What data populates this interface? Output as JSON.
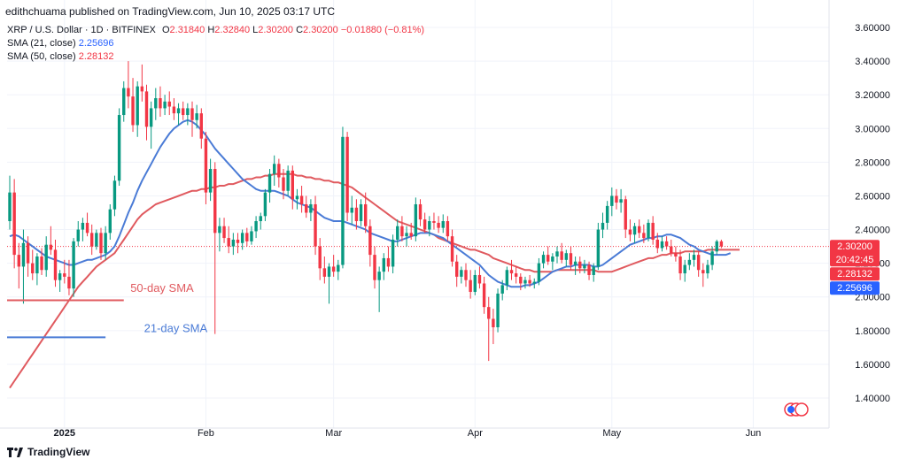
{
  "header": {
    "publisher": "edithchuama published on TradingView.com, Jun 10, 2025 03:17 UTC"
  },
  "legend": {
    "symbol": "XRP / U.S. Dollar · 1D · BITFINEX",
    "o_label": "O",
    "o": "2.31840",
    "h_label": "H",
    "h": "2.32840",
    "l_label": "L",
    "l": "2.30200",
    "c_label": "C",
    "c": "2.30200",
    "change": "−0.01880 (−0.81%)",
    "sma21_label": "SMA (21, close)",
    "sma21_value": "2.25696",
    "sma50_label": "SMA (50, close)",
    "sma50_value": "2.28132"
  },
  "footer": {
    "brand": "TradingView",
    "brand_icon": "tradingview-logo-icon"
  },
  "colors": {
    "up": "#089981",
    "down": "#f23645",
    "sma21": "#2962ff",
    "sma50": "#f23645",
    "sma21_line": "#4a7bd6",
    "sma50_line": "#e05a5f"
  },
  "chart_data": {
    "type": "candlestick",
    "ylim": [
      1.28,
      3.66
    ],
    "y_ticks": [
      "3.60000",
      "3.40000",
      "3.20000",
      "3.00000",
      "2.80000",
      "2.60000",
      "2.40000",
      "2.20000",
      "2.00000",
      "1.80000",
      "1.60000",
      "1.40000"
    ],
    "x_ticks": [
      {
        "label": "2025",
        "bar": 12
      },
      {
        "label": "Feb",
        "bar": 43
      },
      {
        "label": "Mar",
        "bar": 71
      },
      {
        "label": "Apr",
        "bar": 102
      },
      {
        "label": "May",
        "bar": 132
      },
      {
        "label": "Jun",
        "bar": 163
      }
    ],
    "price_labels": [
      {
        "value": "2.30200",
        "sub": "20:42:45",
        "price": 2.302,
        "color": "#f23645"
      },
      {
        "value": "2.28132",
        "price": 2.2813,
        "color": "#f23645"
      },
      {
        "value": "2.25696",
        "price": 2.257,
        "color": "#2962ff"
      }
    ],
    "annotations": [
      {
        "text": "50-day SMA",
        "bar": 28,
        "price": 2.03,
        "color": "#e05a5f",
        "line_from_bar": 0,
        "line_to_bar": 25,
        "line_price": 1.98
      },
      {
        "text": "21-day SMA",
        "bar": 31,
        "price": 1.79,
        "color": "#4a7bd6",
        "line_from_bar": 0,
        "line_to_bar": 21,
        "line_price": 1.76
      }
    ],
    "candles": [
      [
        2.45,
        2.72,
        2.4,
        2.62
      ],
      [
        2.62,
        2.7,
        2.17,
        2.25
      ],
      [
        2.25,
        2.32,
        2.05,
        2.18
      ],
      [
        2.18,
        2.4,
        1.96,
        2.32
      ],
      [
        2.32,
        2.36,
        2.12,
        2.2
      ],
      [
        2.2,
        2.28,
        2.1,
        2.14
      ],
      [
        2.14,
        2.26,
        2.07,
        2.24
      ],
      [
        2.24,
        2.29,
        2.13,
        2.16
      ],
      [
        2.16,
        2.36,
        2.12,
        2.31
      ],
      [
        2.31,
        2.42,
        2.25,
        2.28
      ],
      [
        2.28,
        2.34,
        2.06,
        2.1
      ],
      [
        2.1,
        2.16,
        2.03,
        2.14
      ],
      [
        2.14,
        2.22,
        2.08,
        2.12
      ],
      [
        2.12,
        2.22,
        2.01,
        2.05
      ],
      [
        2.05,
        2.35,
        2.0,
        2.33
      ],
      [
        2.33,
        2.45,
        2.3,
        2.4
      ],
      [
        2.4,
        2.47,
        2.33,
        2.44
      ],
      [
        2.44,
        2.5,
        2.36,
        2.38
      ],
      [
        2.38,
        2.43,
        2.25,
        2.3
      ],
      [
        2.3,
        2.4,
        2.28,
        2.38
      ],
      [
        2.38,
        2.41,
        2.22,
        2.26
      ],
      [
        2.26,
        2.42,
        2.22,
        2.38
      ],
      [
        2.38,
        2.55,
        2.34,
        2.52
      ],
      [
        2.52,
        2.72,
        2.48,
        2.69
      ],
      [
        2.69,
        3.12,
        2.66,
        3.08
      ],
      [
        3.08,
        3.28,
        3.04,
        3.24
      ],
      [
        3.24,
        3.4,
        3.12,
        3.19
      ],
      [
        3.19,
        3.3,
        2.98,
        3.02
      ],
      [
        3.02,
        3.28,
        2.95,
        3.25
      ],
      [
        3.25,
        3.38,
        3.16,
        3.22
      ],
      [
        3.22,
        3.26,
        2.93,
        3.01
      ],
      [
        3.01,
        3.16,
        2.88,
        3.12
      ],
      [
        3.12,
        3.24,
        3.05,
        3.18
      ],
      [
        3.18,
        3.25,
        3.07,
        3.12
      ],
      [
        3.12,
        3.2,
        3.08,
        3.16
      ],
      [
        3.16,
        3.22,
        3.08,
        3.13
      ],
      [
        3.13,
        3.18,
        3.05,
        3.09
      ],
      [
        3.09,
        3.15,
        3.02,
        3.12
      ],
      [
        3.12,
        3.16,
        3.05,
        3.08
      ],
      [
        3.08,
        3.15,
        3.02,
        3.12
      ],
      [
        3.12,
        3.16,
        2.95,
        3.05
      ],
      [
        3.05,
        3.14,
        3.0,
        3.09
      ],
      [
        3.09,
        3.12,
        2.88,
        2.94
      ],
      [
        2.94,
        2.98,
        2.55,
        2.62
      ],
      [
        2.62,
        2.82,
        2.57,
        2.76
      ],
      [
        2.76,
        2.8,
        1.78,
        2.38
      ],
      [
        2.38,
        2.47,
        2.27,
        2.42
      ],
      [
        2.42,
        2.47,
        2.32,
        2.35
      ],
      [
        2.35,
        2.42,
        2.26,
        2.3
      ],
      [
        2.3,
        2.38,
        2.25,
        2.34
      ],
      [
        2.34,
        2.38,
        2.26,
        2.32
      ],
      [
        2.32,
        2.4,
        2.28,
        2.38
      ],
      [
        2.38,
        2.41,
        2.3,
        2.33
      ],
      [
        2.33,
        2.42,
        2.31,
        2.39
      ],
      [
        2.39,
        2.48,
        2.35,
        2.45
      ],
      [
        2.45,
        2.5,
        2.4,
        2.48
      ],
      [
        2.48,
        2.64,
        2.45,
        2.62
      ],
      [
        2.62,
        2.76,
        2.56,
        2.73
      ],
      [
        2.73,
        2.84,
        2.66,
        2.79
      ],
      [
        2.79,
        2.82,
        2.65,
        2.71
      ],
      [
        2.71,
        2.76,
        2.58,
        2.63
      ],
      [
        2.63,
        2.78,
        2.6,
        2.75
      ],
      [
        2.75,
        2.78,
        2.52,
        2.58
      ],
      [
        2.58,
        2.64,
        2.52,
        2.6
      ],
      [
        2.6,
        2.66,
        2.5,
        2.55
      ],
      [
        2.55,
        2.6,
        2.47,
        2.5
      ],
      [
        2.5,
        2.58,
        2.45,
        2.55
      ],
      [
        2.55,
        2.6,
        2.25,
        2.3
      ],
      [
        2.3,
        2.35,
        2.1,
        2.17
      ],
      [
        2.17,
        2.24,
        2.08,
        2.12
      ],
      [
        2.12,
        2.2,
        1.96,
        2.18
      ],
      [
        2.18,
        2.25,
        2.12,
        2.15
      ],
      [
        2.15,
        2.22,
        2.1,
        2.19
      ],
      [
        2.19,
        3.01,
        2.17,
        2.95
      ],
      [
        2.95,
        2.98,
        2.45,
        2.5
      ],
      [
        2.5,
        2.6,
        2.43,
        2.53
      ],
      [
        2.53,
        2.58,
        2.4,
        2.45
      ],
      [
        2.45,
        2.58,
        2.42,
        2.55
      ],
      [
        2.55,
        2.62,
        2.38,
        2.42
      ],
      [
        2.42,
        2.46,
        2.18,
        2.25
      ],
      [
        2.25,
        2.3,
        2.05,
        2.1
      ],
      [
        2.1,
        2.18,
        1.91,
        2.15
      ],
      [
        2.15,
        2.26,
        2.1,
        2.23
      ],
      [
        2.23,
        2.3,
        2.15,
        2.18
      ],
      [
        2.18,
        2.37,
        2.14,
        2.34
      ],
      [
        2.34,
        2.46,
        2.3,
        2.42
      ],
      [
        2.42,
        2.48,
        2.33,
        2.36
      ],
      [
        2.36,
        2.42,
        2.3,
        2.38
      ],
      [
        2.38,
        2.44,
        2.34,
        2.36
      ],
      [
        2.36,
        2.59,
        2.33,
        2.55
      ],
      [
        2.55,
        2.58,
        2.42,
        2.46
      ],
      [
        2.46,
        2.5,
        2.38,
        2.4
      ],
      [
        2.4,
        2.48,
        2.36,
        2.45
      ],
      [
        2.45,
        2.5,
        2.4,
        2.44
      ],
      [
        2.44,
        2.48,
        2.38,
        2.41
      ],
      [
        2.41,
        2.49,
        2.38,
        2.45
      ],
      [
        2.45,
        2.48,
        2.33,
        2.36
      ],
      [
        2.36,
        2.4,
        2.18,
        2.21
      ],
      [
        2.21,
        2.25,
        2.06,
        2.12
      ],
      [
        2.12,
        2.18,
        2.08,
        2.16
      ],
      [
        2.16,
        2.2,
        2.06,
        2.1
      ],
      [
        2.1,
        2.16,
        1.99,
        2.03
      ],
      [
        2.03,
        2.16,
        2.01,
        2.13
      ],
      [
        2.13,
        2.18,
        2.05,
        2.08
      ],
      [
        2.08,
        2.12,
        1.9,
        1.94
      ],
      [
        1.94,
        2.0,
        1.62,
        1.87
      ],
      [
        1.87,
        1.93,
        1.72,
        1.82
      ],
      [
        1.82,
        2.05,
        1.79,
        2.02
      ],
      [
        2.02,
        2.1,
        1.98,
        2.07
      ],
      [
        2.07,
        2.18,
        2.04,
        2.16
      ],
      [
        2.16,
        2.22,
        2.1,
        2.14
      ],
      [
        2.14,
        2.18,
        2.08,
        2.12
      ],
      [
        2.12,
        2.14,
        2.04,
        2.08
      ],
      [
        2.08,
        2.12,
        2.05,
        2.1
      ],
      [
        2.1,
        2.13,
        2.06,
        2.08
      ],
      [
        2.08,
        2.11,
        2.05,
        2.09
      ],
      [
        2.09,
        2.23,
        2.07,
        2.2
      ],
      [
        2.2,
        2.27,
        2.17,
        2.25
      ],
      [
        2.25,
        2.3,
        2.19,
        2.21
      ],
      [
        2.21,
        2.26,
        2.16,
        2.24
      ],
      [
        2.24,
        2.3,
        2.2,
        2.27
      ],
      [
        2.27,
        2.32,
        2.2,
        2.22
      ],
      [
        2.22,
        2.28,
        2.18,
        2.26
      ],
      [
        2.26,
        2.3,
        2.16,
        2.19
      ],
      [
        2.19,
        2.24,
        2.13,
        2.21
      ],
      [
        2.21,
        2.24,
        2.14,
        2.17
      ],
      [
        2.17,
        2.22,
        2.14,
        2.19
      ],
      [
        2.19,
        2.21,
        2.1,
        2.13
      ],
      [
        2.13,
        2.2,
        2.09,
        2.18
      ],
      [
        2.18,
        2.44,
        2.16,
        2.4
      ],
      [
        2.4,
        2.5,
        2.35,
        2.44
      ],
      [
        2.44,
        2.57,
        2.4,
        2.54
      ],
      [
        2.54,
        2.65,
        2.48,
        2.6
      ],
      [
        2.6,
        2.64,
        2.52,
        2.56
      ],
      [
        2.56,
        2.64,
        2.5,
        2.58
      ],
      [
        2.58,
        2.6,
        2.35,
        2.4
      ],
      [
        2.4,
        2.46,
        2.33,
        2.37
      ],
      [
        2.37,
        2.44,
        2.32,
        2.42
      ],
      [
        2.42,
        2.46,
        2.35,
        2.38
      ],
      [
        2.38,
        2.43,
        2.32,
        2.35
      ],
      [
        2.35,
        2.46,
        2.33,
        2.44
      ],
      [
        2.44,
        2.48,
        2.31,
        2.34
      ],
      [
        2.34,
        2.38,
        2.26,
        2.29
      ],
      [
        2.29,
        2.36,
        2.27,
        2.33
      ],
      [
        2.33,
        2.36,
        2.28,
        2.3
      ],
      [
        2.3,
        2.34,
        2.24,
        2.26
      ],
      [
        2.26,
        2.3,
        2.21,
        2.24
      ],
      [
        2.24,
        2.28,
        2.1,
        2.14
      ],
      [
        2.14,
        2.22,
        2.09,
        2.19
      ],
      [
        2.19,
        2.26,
        2.16,
        2.22
      ],
      [
        2.22,
        2.28,
        2.18,
        2.25
      ],
      [
        2.25,
        2.27,
        2.12,
        2.16
      ],
      [
        2.16,
        2.2,
        2.06,
        2.14
      ],
      [
        2.14,
        2.22,
        2.11,
        2.19
      ],
      [
        2.19,
        2.3,
        2.16,
        2.27
      ],
      [
        2.27,
        2.34,
        2.25,
        2.33
      ],
      [
        2.33,
        2.34,
        2.29,
        2.3
      ]
    ],
    "sma21": [
      2.36,
      2.37,
      2.36,
      2.34,
      2.32,
      2.3,
      2.28,
      2.26,
      2.24,
      2.23,
      2.22,
      2.21,
      2.2,
      2.19,
      2.19,
      2.2,
      2.21,
      2.22,
      2.22,
      2.23,
      2.24,
      2.25,
      2.27,
      2.3,
      2.36,
      2.43,
      2.5,
      2.56,
      2.63,
      2.69,
      2.74,
      2.79,
      2.84,
      2.89,
      2.93,
      2.97,
      3.0,
      3.02,
      3.04,
      3.05,
      3.04,
      3.02,
      2.99,
      2.96,
      2.92,
      2.88,
      2.85,
      2.82,
      2.79,
      2.76,
      2.73,
      2.7,
      2.68,
      2.66,
      2.64,
      2.63,
      2.63,
      2.63,
      2.63,
      2.62,
      2.61,
      2.6,
      2.58,
      2.56,
      2.55,
      2.54,
      2.53,
      2.51,
      2.49,
      2.47,
      2.46,
      2.45,
      2.45,
      2.45,
      2.44,
      2.43,
      2.42,
      2.41,
      2.4,
      2.38,
      2.37,
      2.36,
      2.35,
      2.34,
      2.33,
      2.33,
      2.34,
      2.35,
      2.36,
      2.37,
      2.38,
      2.38,
      2.38,
      2.37,
      2.36,
      2.35,
      2.33,
      2.31,
      2.29,
      2.27,
      2.25,
      2.23,
      2.21,
      2.19,
      2.16,
      2.13,
      2.11,
      2.09,
      2.08,
      2.07,
      2.06,
      2.06,
      2.06,
      2.07,
      2.07,
      2.08,
      2.09,
      2.11,
      2.13,
      2.15,
      2.16,
      2.17,
      2.18,
      2.18,
      2.19,
      2.19,
      2.19,
      2.19,
      2.18,
      2.18,
      2.19,
      2.21,
      2.23,
      2.25,
      2.27,
      2.29,
      2.31,
      2.32,
      2.33,
      2.34,
      2.35,
      2.35,
      2.36,
      2.36,
      2.37,
      2.37,
      2.36,
      2.35,
      2.33,
      2.31,
      2.3,
      2.28,
      2.27,
      2.26,
      2.25,
      2.25,
      2.25,
      2.25,
      2.26
    ],
    "sma50": [
      1.46,
      1.5,
      1.54,
      1.58,
      1.62,
      1.66,
      1.7,
      1.74,
      1.78,
      1.82,
      1.86,
      1.9,
      1.94,
      1.98,
      2.02,
      2.06,
      2.09,
      2.12,
      2.15,
      2.18,
      2.2,
      2.22,
      2.24,
      2.26,
      2.3,
      2.34,
      2.38,
      2.42,
      2.46,
      2.49,
      2.51,
      2.53,
      2.55,
      2.56,
      2.57,
      2.58,
      2.59,
      2.6,
      2.61,
      2.62,
      2.63,
      2.63,
      2.64,
      2.64,
      2.65,
      2.65,
      2.66,
      2.66,
      2.67,
      2.67,
      2.68,
      2.69,
      2.7,
      2.7,
      2.71,
      2.71,
      2.72,
      2.72,
      2.73,
      2.73,
      2.73,
      2.73,
      2.73,
      2.72,
      2.72,
      2.71,
      2.71,
      2.7,
      2.7,
      2.69,
      2.69,
      2.68,
      2.68,
      2.67,
      2.66,
      2.65,
      2.63,
      2.61,
      2.59,
      2.57,
      2.55,
      2.53,
      2.51,
      2.49,
      2.47,
      2.45,
      2.44,
      2.43,
      2.42,
      2.41,
      2.4,
      2.39,
      2.38,
      2.37,
      2.35,
      2.34,
      2.33,
      2.32,
      2.31,
      2.3,
      2.29,
      2.28,
      2.28,
      2.27,
      2.26,
      2.25,
      2.23,
      2.22,
      2.21,
      2.2,
      2.19,
      2.18,
      2.17,
      2.16,
      2.16,
      2.15,
      2.15,
      2.15,
      2.15,
      2.15,
      2.16,
      2.16,
      2.16,
      2.16,
      2.16,
      2.16,
      2.16,
      2.16,
      2.16,
      2.15,
      2.15,
      2.15,
      2.15,
      2.16,
      2.17,
      2.18,
      2.19,
      2.2,
      2.21,
      2.22,
      2.23,
      2.23,
      2.24,
      2.25,
      2.25,
      2.26,
      2.26,
      2.26,
      2.27,
      2.27,
      2.27,
      2.27,
      2.27,
      2.28,
      2.28,
      2.28,
      2.28,
      2.28,
      2.28,
      2.28,
      2.28
    ]
  }
}
